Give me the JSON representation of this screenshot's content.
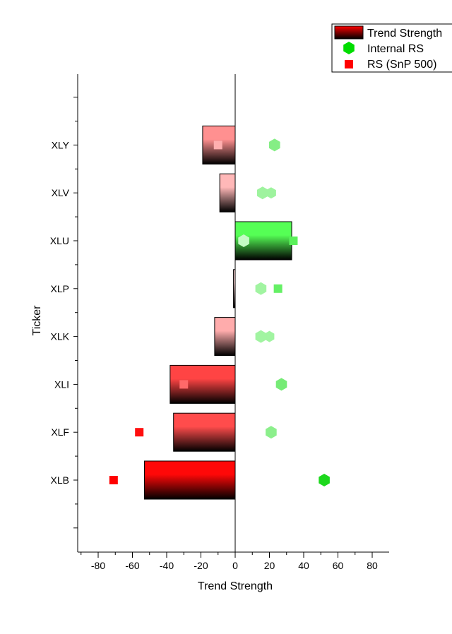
{
  "chart_data": {
    "type": "bar",
    "orientation": "horizontal",
    "xlabel": "Trend Strength",
    "ylabel": "Ticker",
    "xlim": [
      -90,
      90
    ],
    "xticks": [
      -80,
      -60,
      -40,
      -20,
      0,
      20,
      40,
      60,
      80
    ],
    "categories": [
      "XLB",
      "XLF",
      "XLI",
      "XLK",
      "XLP",
      "XLU",
      "XLV",
      "XLY"
    ],
    "series": [
      {
        "name": "Trend Strength",
        "kind": "bar",
        "values": [
          -53,
          -36,
          -38,
          -12,
          -1,
          33,
          -9,
          -19
        ]
      },
      {
        "name": "Internal RS",
        "kind": "hexagon",
        "values": [
          52,
          21,
          27,
          15,
          15,
          5,
          16,
          23
        ],
        "secondary_values": [
          null,
          null,
          null,
          20,
          null,
          null,
          21,
          null
        ]
      },
      {
        "name": "RS (SnP 500)",
        "kind": "square",
        "values": [
          -71,
          -56,
          -30,
          null,
          25,
          34,
          null,
          -10
        ]
      }
    ],
    "legend": {
      "position": "top-right",
      "entries": [
        "Trend Strength",
        "Internal RS",
        "RS (SnP 500)"
      ]
    },
    "colors": {
      "negative": "#ff0000",
      "positive": "#00dd00",
      "positive_dark": "#00c800"
    },
    "grid": false
  }
}
